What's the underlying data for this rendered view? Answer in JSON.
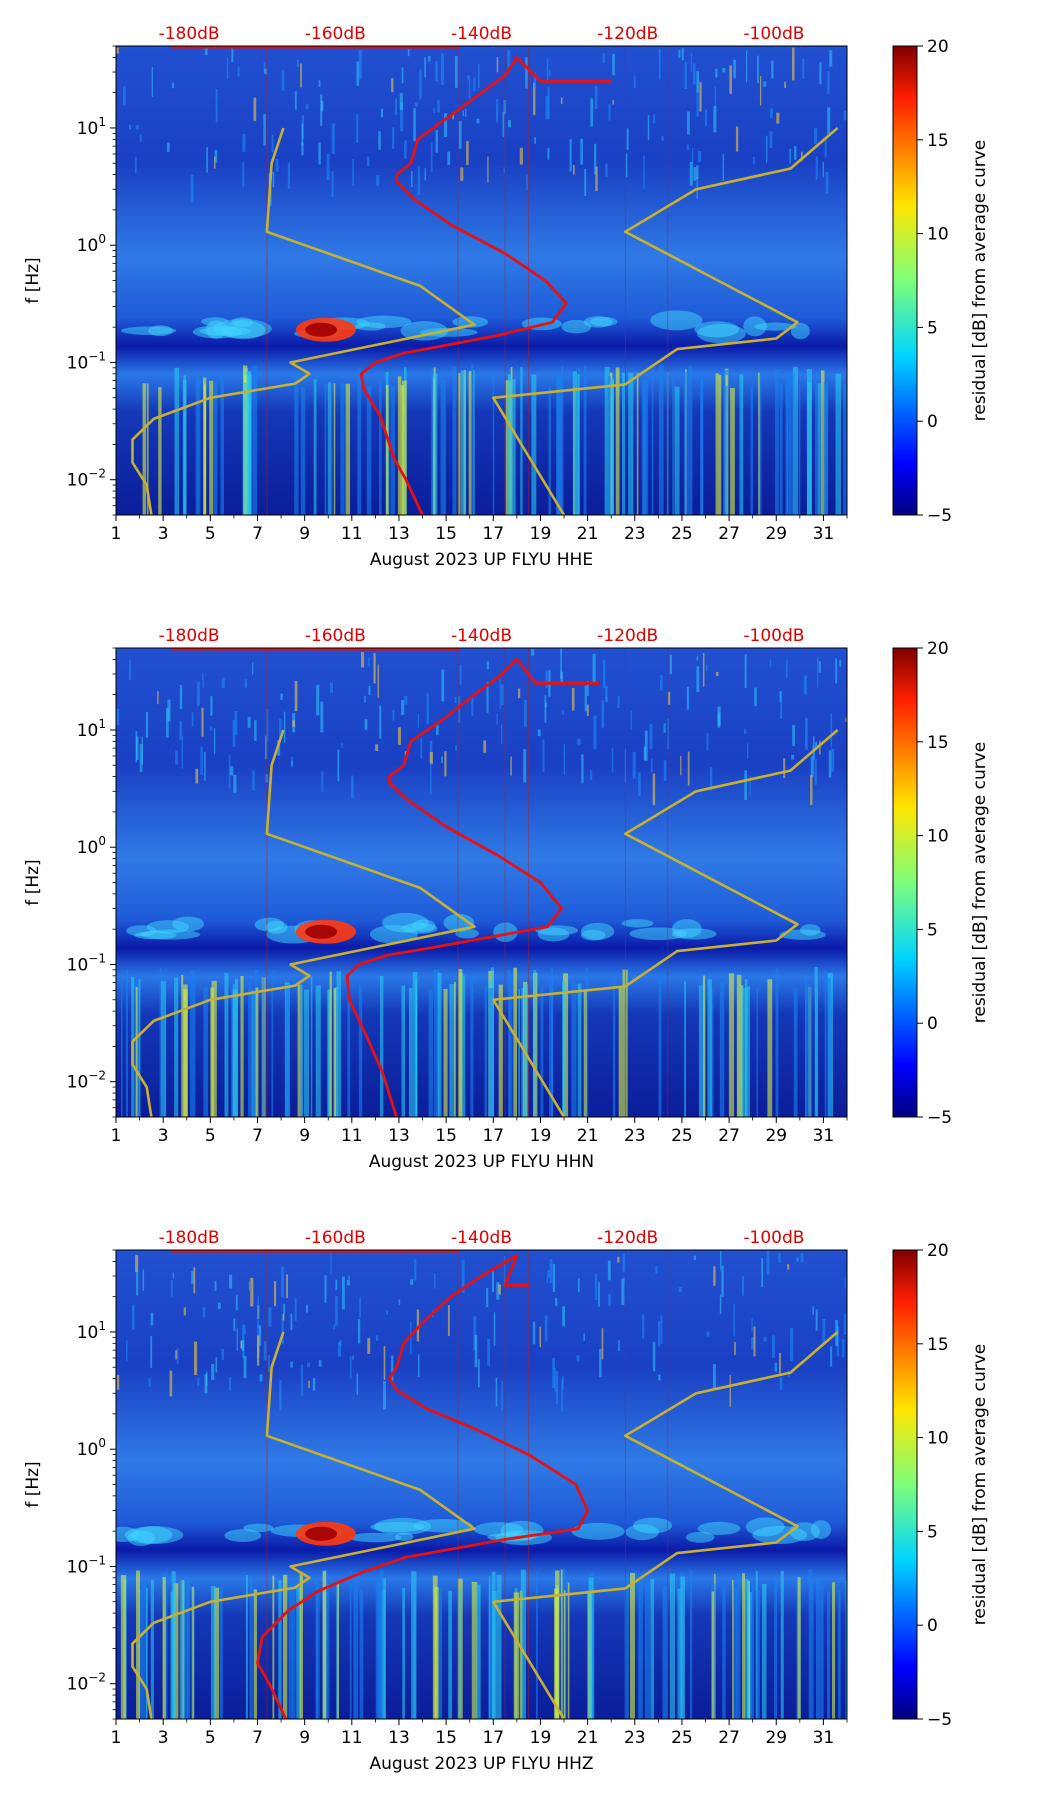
{
  "chart_data": [
    {
      "type": "heatmap",
      "title": "",
      "xlabel": "August 2023 UP FLYU  HHE",
      "ylabel": "f [Hz]",
      "x_ticks": [
        "1",
        "3",
        "5",
        "7",
        "9",
        "11",
        "13",
        "15",
        "17",
        "19",
        "21",
        "23",
        "25",
        "27",
        "29",
        "31"
      ],
      "x_range": [
        1,
        32
      ],
      "y_scale": "log",
      "y_range": [
        0.005,
        50
      ],
      "y_ticks": [
        {
          "base": "10",
          "exp": "−2"
        },
        {
          "base": "10",
          "exp": "−1"
        },
        {
          "base": "10",
          "exp": "0"
        },
        {
          "base": "10",
          "exp": "1"
        }
      ],
      "top_axis_labels": [
        "-180dB",
        "-160dB",
        "-140dB",
        "-120dB",
        "-100dB"
      ],
      "colorbar": {
        "label": "residual [dB] from average curve",
        "range": [
          -5,
          20
        ],
        "ticks": [
          "−5",
          "0",
          "5",
          "10",
          "15",
          "20"
        ]
      },
      "series": [
        {
          "name": "Peterson NLNM",
          "color": "#c8b030",
          "points": [
            [
              8.1,
              10
            ],
            [
              7.6,
              5
            ],
            [
              7.4,
              1.3
            ],
            [
              13.9,
              0.45
            ],
            [
              16.2,
              0.21
            ],
            [
              8.4,
              0.1
            ],
            [
              9.2,
              0.08
            ],
            [
              8.6,
              0.066
            ],
            [
              5.0,
              0.05
            ],
            [
              2.6,
              0.033
            ],
            [
              1.7,
              0.022
            ],
            [
              1.7,
              0.014
            ],
            [
              2.3,
              0.009
            ],
            [
              2.5,
              0.005
            ]
          ]
        },
        {
          "name": "Peterson NHNM",
          "color": "#c8b030",
          "points": [
            [
              31.6,
              10
            ],
            [
              29.6,
              4.5
            ],
            [
              25.6,
              3
            ],
            [
              22.6,
              1.3
            ],
            [
              29.9,
              0.22
            ],
            [
              29.0,
              0.16
            ],
            [
              24.8,
              0.13
            ],
            [
              22.6,
              0.065
            ],
            [
              17.0,
              0.05
            ],
            [
              20.0,
              0.005
            ]
          ]
        },
        {
          "name": "median PSD",
          "color": "#e81010",
          "points": [
            [
              22.0,
              25
            ],
            [
              19.0,
              25
            ],
            [
              18.0,
              40
            ],
            [
              17.5,
              28
            ],
            [
              16.5,
              20
            ],
            [
              15.0,
              12
            ],
            [
              13.8,
              8
            ],
            [
              13.5,
              5
            ],
            [
              12.9,
              4
            ],
            [
              12.9,
              3.5
            ],
            [
              13.6,
              2.5
            ],
            [
              15.2,
              1.5
            ],
            [
              17.5,
              0.85
            ],
            [
              19.2,
              0.5
            ],
            [
              20.1,
              0.32
            ],
            [
              19.5,
              0.22
            ],
            [
              17.2,
              0.17
            ],
            [
              15.0,
              0.14
            ],
            [
              13.2,
              0.12
            ],
            [
              12.0,
              0.1
            ],
            [
              11.4,
              0.08
            ],
            [
              11.5,
              0.06
            ],
            [
              12.2,
              0.035
            ],
            [
              12.8,
              0.015
            ],
            [
              13.3,
              0.01
            ],
            [
              14.0,
              0.005
            ]
          ]
        }
      ]
    },
    {
      "type": "heatmap",
      "title": "",
      "xlabel": "August 2023 UP FLYU  HHN",
      "ylabel": "f [Hz]",
      "x_ticks": [
        "1",
        "3",
        "5",
        "7",
        "9",
        "11",
        "13",
        "15",
        "17",
        "19",
        "21",
        "23",
        "25",
        "27",
        "29",
        "31"
      ],
      "x_range": [
        1,
        32
      ],
      "y_scale": "log",
      "y_range": [
        0.005,
        50
      ],
      "y_ticks": [
        {
          "base": "10",
          "exp": "−2"
        },
        {
          "base": "10",
          "exp": "−1"
        },
        {
          "base": "10",
          "exp": "0"
        },
        {
          "base": "10",
          "exp": "1"
        }
      ],
      "top_axis_labels": [
        "-180dB",
        "-160dB",
        "-140dB",
        "-120dB",
        "-100dB"
      ],
      "colorbar": {
        "label": "residual [dB] from average curve",
        "range": [
          -5,
          20
        ],
        "ticks": [
          "−5",
          "0",
          "5",
          "10",
          "15",
          "20"
        ]
      },
      "series": [
        {
          "name": "Peterson NLNM",
          "color": "#c8b030",
          "points": [
            [
              8.1,
              10
            ],
            [
              7.6,
              5
            ],
            [
              7.4,
              1.3
            ],
            [
              13.9,
              0.45
            ],
            [
              16.2,
              0.21
            ],
            [
              8.4,
              0.1
            ],
            [
              9.2,
              0.08
            ],
            [
              8.6,
              0.066
            ],
            [
              5.0,
              0.05
            ],
            [
              2.6,
              0.033
            ],
            [
              1.7,
              0.022
            ],
            [
              1.7,
              0.014
            ],
            [
              2.3,
              0.009
            ],
            [
              2.5,
              0.005
            ]
          ]
        },
        {
          "name": "Peterson NHNM",
          "color": "#c8b030",
          "points": [
            [
              31.6,
              10
            ],
            [
              29.6,
              4.5
            ],
            [
              25.6,
              3
            ],
            [
              22.6,
              1.3
            ],
            [
              29.9,
              0.22
            ],
            [
              29.0,
              0.16
            ],
            [
              24.8,
              0.13
            ],
            [
              22.6,
              0.065
            ],
            [
              17.0,
              0.05
            ],
            [
              20.0,
              0.005
            ]
          ]
        },
        {
          "name": "median PSD",
          "color": "#e81010",
          "points": [
            [
              21.5,
              25
            ],
            [
              18.8,
              25
            ],
            [
              18.0,
              40
            ],
            [
              17.2,
              28
            ],
            [
              16.2,
              20
            ],
            [
              14.8,
              12
            ],
            [
              13.5,
              8
            ],
            [
              13.2,
              5
            ],
            [
              12.6,
              4
            ],
            [
              12.6,
              3.5
            ],
            [
              13.4,
              2.5
            ],
            [
              15.0,
              1.5
            ],
            [
              17.2,
              0.85
            ],
            [
              19.0,
              0.5
            ],
            [
              19.9,
              0.3
            ],
            [
              19.3,
              0.21
            ],
            [
              16.8,
              0.17
            ],
            [
              14.5,
              0.14
            ],
            [
              12.5,
              0.12
            ],
            [
              11.3,
              0.1
            ],
            [
              10.8,
              0.08
            ],
            [
              10.9,
              0.05
            ],
            [
              11.6,
              0.025
            ],
            [
              12.3,
              0.012
            ],
            [
              12.9,
              0.005
            ]
          ]
        }
      ]
    },
    {
      "type": "heatmap",
      "title": "",
      "xlabel": "August 2023 UP FLYU  HHZ",
      "ylabel": "f [Hz]",
      "x_ticks": [
        "1",
        "3",
        "5",
        "7",
        "9",
        "11",
        "13",
        "15",
        "17",
        "19",
        "21",
        "23",
        "25",
        "27",
        "29",
        "31"
      ],
      "x_range": [
        1,
        32
      ],
      "y_scale": "log",
      "y_range": [
        0.005,
        50
      ],
      "y_ticks": [
        {
          "base": "10",
          "exp": "−2"
        },
        {
          "base": "10",
          "exp": "−1"
        },
        {
          "base": "10",
          "exp": "0"
        },
        {
          "base": "10",
          "exp": "1"
        }
      ],
      "top_axis_labels": [
        "-180dB",
        "-160dB",
        "-140dB",
        "-120dB",
        "-100dB"
      ],
      "colorbar": {
        "label": "residual [dB] from average curve",
        "range": [
          -5,
          20
        ],
        "ticks": [
          "−5",
          "0",
          "5",
          "10",
          "15",
          "20"
        ]
      },
      "series": [
        {
          "name": "Peterson NLNM",
          "color": "#c8b030",
          "points": [
            [
              8.1,
              10
            ],
            [
              7.6,
              5
            ],
            [
              7.4,
              1.3
            ],
            [
              13.9,
              0.45
            ],
            [
              16.2,
              0.21
            ],
            [
              8.4,
              0.1
            ],
            [
              9.2,
              0.08
            ],
            [
              8.6,
              0.066
            ],
            [
              5.0,
              0.05
            ],
            [
              2.6,
              0.033
            ],
            [
              1.7,
              0.022
            ],
            [
              1.7,
              0.014
            ],
            [
              2.3,
              0.009
            ],
            [
              2.5,
              0.005
            ]
          ]
        },
        {
          "name": "Peterson NHNM",
          "color": "#c8b030",
          "points": [
            [
              31.6,
              10
            ],
            [
              29.6,
              4.5
            ],
            [
              25.6,
              3
            ],
            [
              22.6,
              1.3
            ],
            [
              29.9,
              0.22
            ],
            [
              29.0,
              0.16
            ],
            [
              24.8,
              0.13
            ],
            [
              22.6,
              0.065
            ],
            [
              17.0,
              0.05
            ],
            [
              20.0,
              0.005
            ]
          ]
        },
        {
          "name": "median PSD",
          "color": "#e81010",
          "points": [
            [
              18.5,
              25
            ],
            [
              17.5,
              25
            ],
            [
              18.0,
              45
            ],
            [
              16.5,
              30
            ],
            [
              15.2,
              20
            ],
            [
              14.0,
              12
            ],
            [
              13.2,
              8
            ],
            [
              12.9,
              5
            ],
            [
              12.6,
              4
            ],
            [
              12.9,
              3.2
            ],
            [
              14.2,
              2.2
            ],
            [
              16.2,
              1.5
            ],
            [
              18.5,
              0.9
            ],
            [
              20.5,
              0.5
            ],
            [
              21.0,
              0.3
            ],
            [
              20.6,
              0.21
            ],
            [
              17.5,
              0.17
            ],
            [
              15.2,
              0.14
            ],
            [
              13.3,
              0.12
            ],
            [
              11.5,
              0.09
            ],
            [
              9.6,
              0.062
            ],
            [
              8.3,
              0.042
            ],
            [
              7.2,
              0.025
            ],
            [
              7.0,
              0.015
            ],
            [
              7.5,
              0.01
            ],
            [
              8.2,
              0.005
            ]
          ]
        }
      ]
    }
  ]
}
